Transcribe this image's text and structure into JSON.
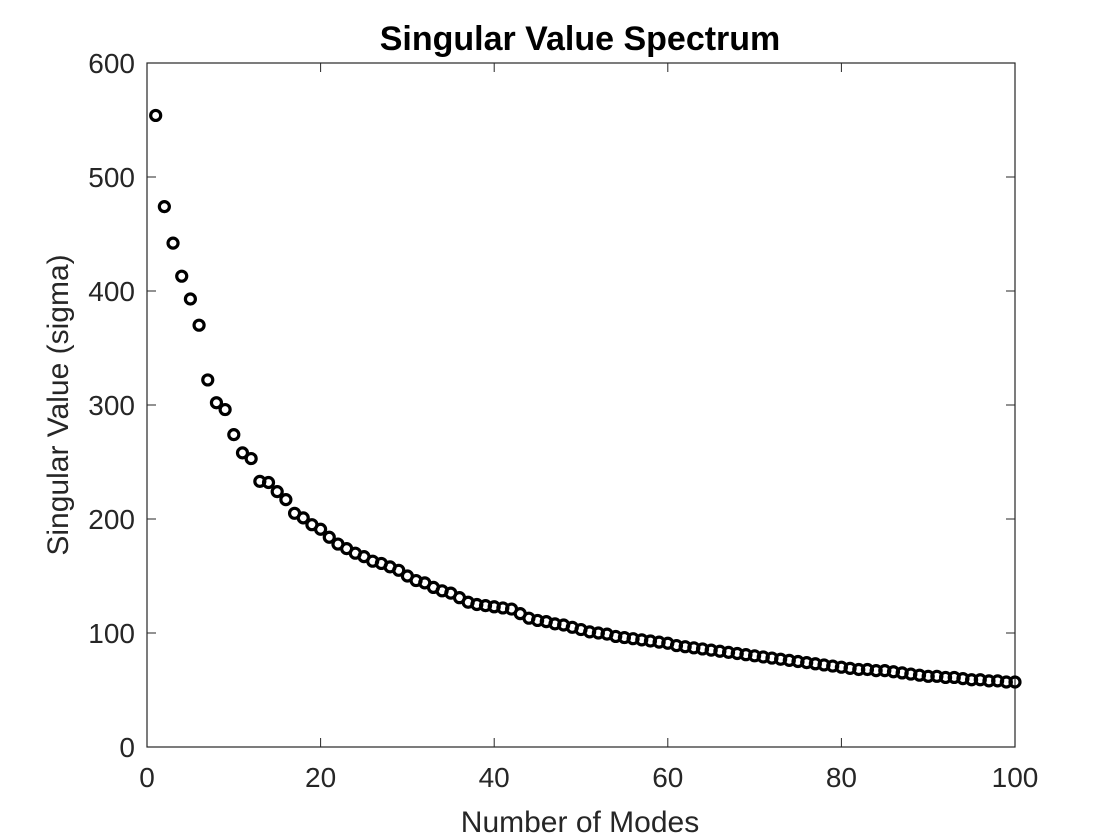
{
  "chart_data": {
    "type": "scatter",
    "title": "Singular Value Spectrum",
    "xlabel": "Number of Modes",
    "ylabel": "Singular Value (sigma)",
    "xlim": [
      0,
      100
    ],
    "ylim": [
      0,
      600
    ],
    "xticks": [
      0,
      20,
      40,
      60,
      80,
      100
    ],
    "yticks": [
      0,
      100,
      200,
      300,
      400,
      500,
      600
    ],
    "grid": false,
    "marker": "circle",
    "marker_color": "#000000",
    "series": [
      {
        "x": [
          1,
          2,
          3,
          4,
          5,
          6,
          7,
          8,
          9,
          10,
          11,
          12,
          13,
          14,
          15,
          16,
          17,
          18,
          19,
          20,
          21,
          22,
          23,
          24,
          25,
          26,
          27,
          28,
          29,
          30,
          31,
          32,
          33,
          34,
          35,
          36,
          37,
          38,
          39,
          40,
          41,
          42,
          43,
          44,
          45,
          46,
          47,
          48,
          49,
          50,
          51,
          52,
          53,
          54,
          55,
          56,
          57,
          58,
          59,
          60,
          61,
          62,
          63,
          64,
          65,
          66,
          67,
          68,
          69,
          70,
          71,
          72,
          73,
          74,
          75,
          76,
          77,
          78,
          79,
          80,
          81,
          82,
          83,
          84,
          85,
          86,
          87,
          88,
          89,
          90,
          91,
          92,
          93,
          94,
          95,
          96,
          97,
          98,
          99,
          100
        ],
        "values": [
          554,
          474,
          442,
          413,
          393,
          370,
          322,
          302,
          296,
          274,
          258,
          253,
          233,
          232,
          224,
          217,
          205,
          201,
          195,
          191,
          184,
          178,
          174,
          170,
          167,
          163,
          161,
          158,
          155,
          150,
          146,
          144,
          140,
          137,
          135,
          131,
          127,
          125,
          124,
          123,
          122,
          121,
          117,
          113,
          111,
          110,
          108,
          107,
          105,
          103,
          101,
          100,
          99,
          97,
          96,
          95,
          94,
          93,
          92,
          91,
          89,
          88,
          87,
          86,
          85,
          84,
          83,
          82,
          81,
          80,
          79,
          78,
          77,
          76,
          75,
          74,
          73,
          72,
          71,
          70,
          69,
          68,
          68,
          67,
          67,
          66,
          65,
          64,
          63,
          62,
          62,
          61,
          61,
          60,
          59,
          59,
          58,
          58,
          57,
          57
        ]
      }
    ]
  }
}
